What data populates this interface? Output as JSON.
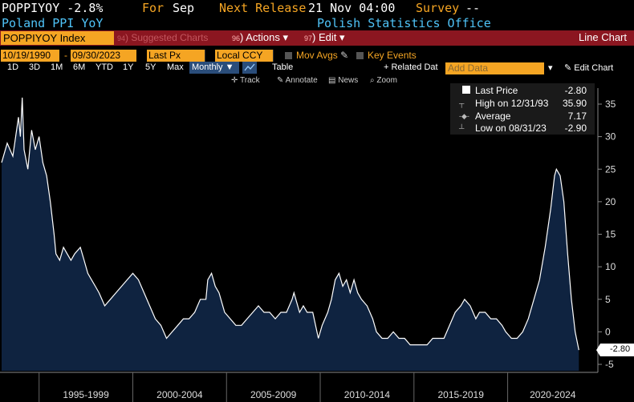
{
  "header": {
    "ticker": "POPPIYOY",
    "value": "-2.8%",
    "for_label": "For",
    "for_value": "Sep",
    "next_release_label": "Next Release",
    "next_release_value": "21 Nov 04:00",
    "survey_label": "Survey",
    "survey_value": "--",
    "series_name": "Poland PPI YoY",
    "source": "Polish Statistics Office"
  },
  "toolbar": {
    "security": "POPPIYOY Index",
    "suggested_num": "94",
    "suggested": "Suggested Charts",
    "actions_num": "96",
    "actions": "Actions",
    "edit_num": "97",
    "edit": "Edit",
    "chart_type": "Line Chart"
  },
  "controls": {
    "start_date": "10/19/1990",
    "end_date": "09/30/2023",
    "price_field": "Last Px",
    "currency": "Local CCY",
    "mov_avgs": "Mov Avgs",
    "key_events": "Key Events",
    "related": "+ Related Dat",
    "add_data_placeholder": "Add Data",
    "edit_chart": "Edit Chart"
  },
  "periods": [
    "1D",
    "3D",
    "1M",
    "6M",
    "YTD",
    "1Y",
    "5Y",
    "Max"
  ],
  "periodicity": "Monthly",
  "table_label": "Table",
  "tools": [
    "Track",
    "Annotate",
    "News",
    "Zoom"
  ],
  "legend": {
    "last_price_label": "Last Price",
    "last_price_value": "-2.80",
    "high_label": "High on 12/31/93",
    "high_value": "35.90",
    "average_label": "Average",
    "average_value": "7.17",
    "low_label": "Low on 08/31/23",
    "low_value": "-2.90"
  },
  "last_value_tag": "-2.80",
  "colors": {
    "accent": "#f5a523",
    "title_blue": "#4fc3f7",
    "bar_red": "#8b1620",
    "area": "#0f2340",
    "line": "#ffffff"
  },
  "chart_data": {
    "type": "area",
    "title": "",
    "xlabel": "",
    "ylabel": "",
    "ylim": [
      -6,
      38
    ],
    "y_ticks": [
      35,
      30,
      25,
      20,
      15,
      10,
      5,
      0,
      -5
    ],
    "x_ticks": [
      "1995-1999",
      "2000-2004",
      "2005-2009",
      "2010-2014",
      "2015-2019",
      "2020-2024"
    ],
    "x_range": [
      1993.0,
      2024.0
    ],
    "grid": false,
    "legend_position": "top-right",
    "series": [
      {
        "values": [
          [
            1993.0,
            26
          ],
          [
            1993.3,
            29
          ],
          [
            1993.6,
            27
          ],
          [
            1993.9,
            33
          ],
          [
            1994.0,
            30
          ],
          [
            1994.1,
            36
          ],
          [
            1994.2,
            28
          ],
          [
            1994.4,
            25
          ],
          [
            1994.6,
            31
          ],
          [
            1994.8,
            28
          ],
          [
            1995.0,
            30
          ],
          [
            1995.2,
            26
          ],
          [
            1995.4,
            24
          ],
          [
            1995.6,
            20
          ],
          [
            1995.8,
            15
          ],
          [
            1995.9,
            12
          ],
          [
            1996.1,
            11
          ],
          [
            1996.3,
            13
          ],
          [
            1996.5,
            12
          ],
          [
            1996.7,
            11
          ],
          [
            1996.9,
            12
          ],
          [
            1997.2,
            13
          ],
          [
            1997.4,
            11
          ],
          [
            1997.6,
            9
          ],
          [
            1997.8,
            8
          ],
          [
            1998.0,
            7
          ],
          [
            1998.2,
            6
          ],
          [
            1998.5,
            4
          ],
          [
            1998.8,
            5
          ],
          [
            1999.1,
            6
          ],
          [
            1999.4,
            7
          ],
          [
            1999.7,
            8
          ],
          [
            2000.0,
            9
          ],
          [
            2000.3,
            8
          ],
          [
            2000.6,
            6
          ],
          [
            2000.9,
            4
          ],
          [
            2001.2,
            2
          ],
          [
            2001.5,
            1
          ],
          [
            2001.8,
            -1
          ],
          [
            2002.1,
            0
          ],
          [
            2002.4,
            1
          ],
          [
            2002.7,
            2
          ],
          [
            2003.0,
            2
          ],
          [
            2003.3,
            3
          ],
          [
            2003.6,
            5
          ],
          [
            2003.9,
            5
          ],
          [
            2004.0,
            8
          ],
          [
            2004.2,
            9
          ],
          [
            2004.4,
            7
          ],
          [
            2004.6,
            6
          ],
          [
            2004.9,
            3
          ],
          [
            2005.2,
            2
          ],
          [
            2005.5,
            1
          ],
          [
            2005.8,
            1
          ],
          [
            2006.1,
            2
          ],
          [
            2006.4,
            3
          ],
          [
            2006.7,
            4
          ],
          [
            2007.0,
            3
          ],
          [
            2007.3,
            3
          ],
          [
            2007.6,
            2
          ],
          [
            2007.9,
            3
          ],
          [
            2008.2,
            3
          ],
          [
            2008.5,
            5
          ],
          [
            2008.6,
            6
          ],
          [
            2008.9,
            3
          ],
          [
            2009.1,
            4
          ],
          [
            2009.3,
            3
          ],
          [
            2009.6,
            3
          ],
          [
            2009.9,
            -1
          ],
          [
            2010.1,
            1
          ],
          [
            2010.4,
            3
          ],
          [
            2010.6,
            5
          ],
          [
            2010.8,
            8
          ],
          [
            2011.0,
            9
          ],
          [
            2011.2,
            7
          ],
          [
            2011.4,
            8
          ],
          [
            2011.6,
            6
          ],
          [
            2011.8,
            8
          ],
          [
            2012.0,
            6
          ],
          [
            2012.2,
            5
          ],
          [
            2012.5,
            4
          ],
          [
            2012.8,
            2
          ],
          [
            2013.0,
            0
          ],
          [
            2013.3,
            -1
          ],
          [
            2013.6,
            -1
          ],
          [
            2013.9,
            0
          ],
          [
            2014.2,
            -1
          ],
          [
            2014.5,
            -1
          ],
          [
            2014.8,
            -2
          ],
          [
            2015.1,
            -2
          ],
          [
            2015.4,
            -2
          ],
          [
            2015.7,
            -2
          ],
          [
            2016.0,
            -1
          ],
          [
            2016.3,
            -1
          ],
          [
            2016.6,
            -1
          ],
          [
            2016.9,
            1
          ],
          [
            2017.2,
            3
          ],
          [
            2017.5,
            4
          ],
          [
            2017.7,
            5
          ],
          [
            2018.0,
            4
          ],
          [
            2018.3,
            2
          ],
          [
            2018.5,
            3
          ],
          [
            2018.8,
            3
          ],
          [
            2019.1,
            2
          ],
          [
            2019.4,
            2
          ],
          [
            2019.7,
            1
          ],
          [
            2019.9,
            0
          ],
          [
            2020.2,
            -1
          ],
          [
            2020.5,
            -1
          ],
          [
            2020.8,
            0
          ],
          [
            2021.1,
            2
          ],
          [
            2021.4,
            5
          ],
          [
            2021.7,
            8
          ],
          [
            2022.0,
            13
          ],
          [
            2022.3,
            19
          ],
          [
            2022.5,
            24
          ],
          [
            2022.6,
            25
          ],
          [
            2022.8,
            24
          ],
          [
            2023.0,
            20
          ],
          [
            2023.2,
            12
          ],
          [
            2023.4,
            5
          ],
          [
            2023.6,
            0
          ],
          [
            2023.8,
            -2.8
          ]
        ]
      }
    ]
  }
}
